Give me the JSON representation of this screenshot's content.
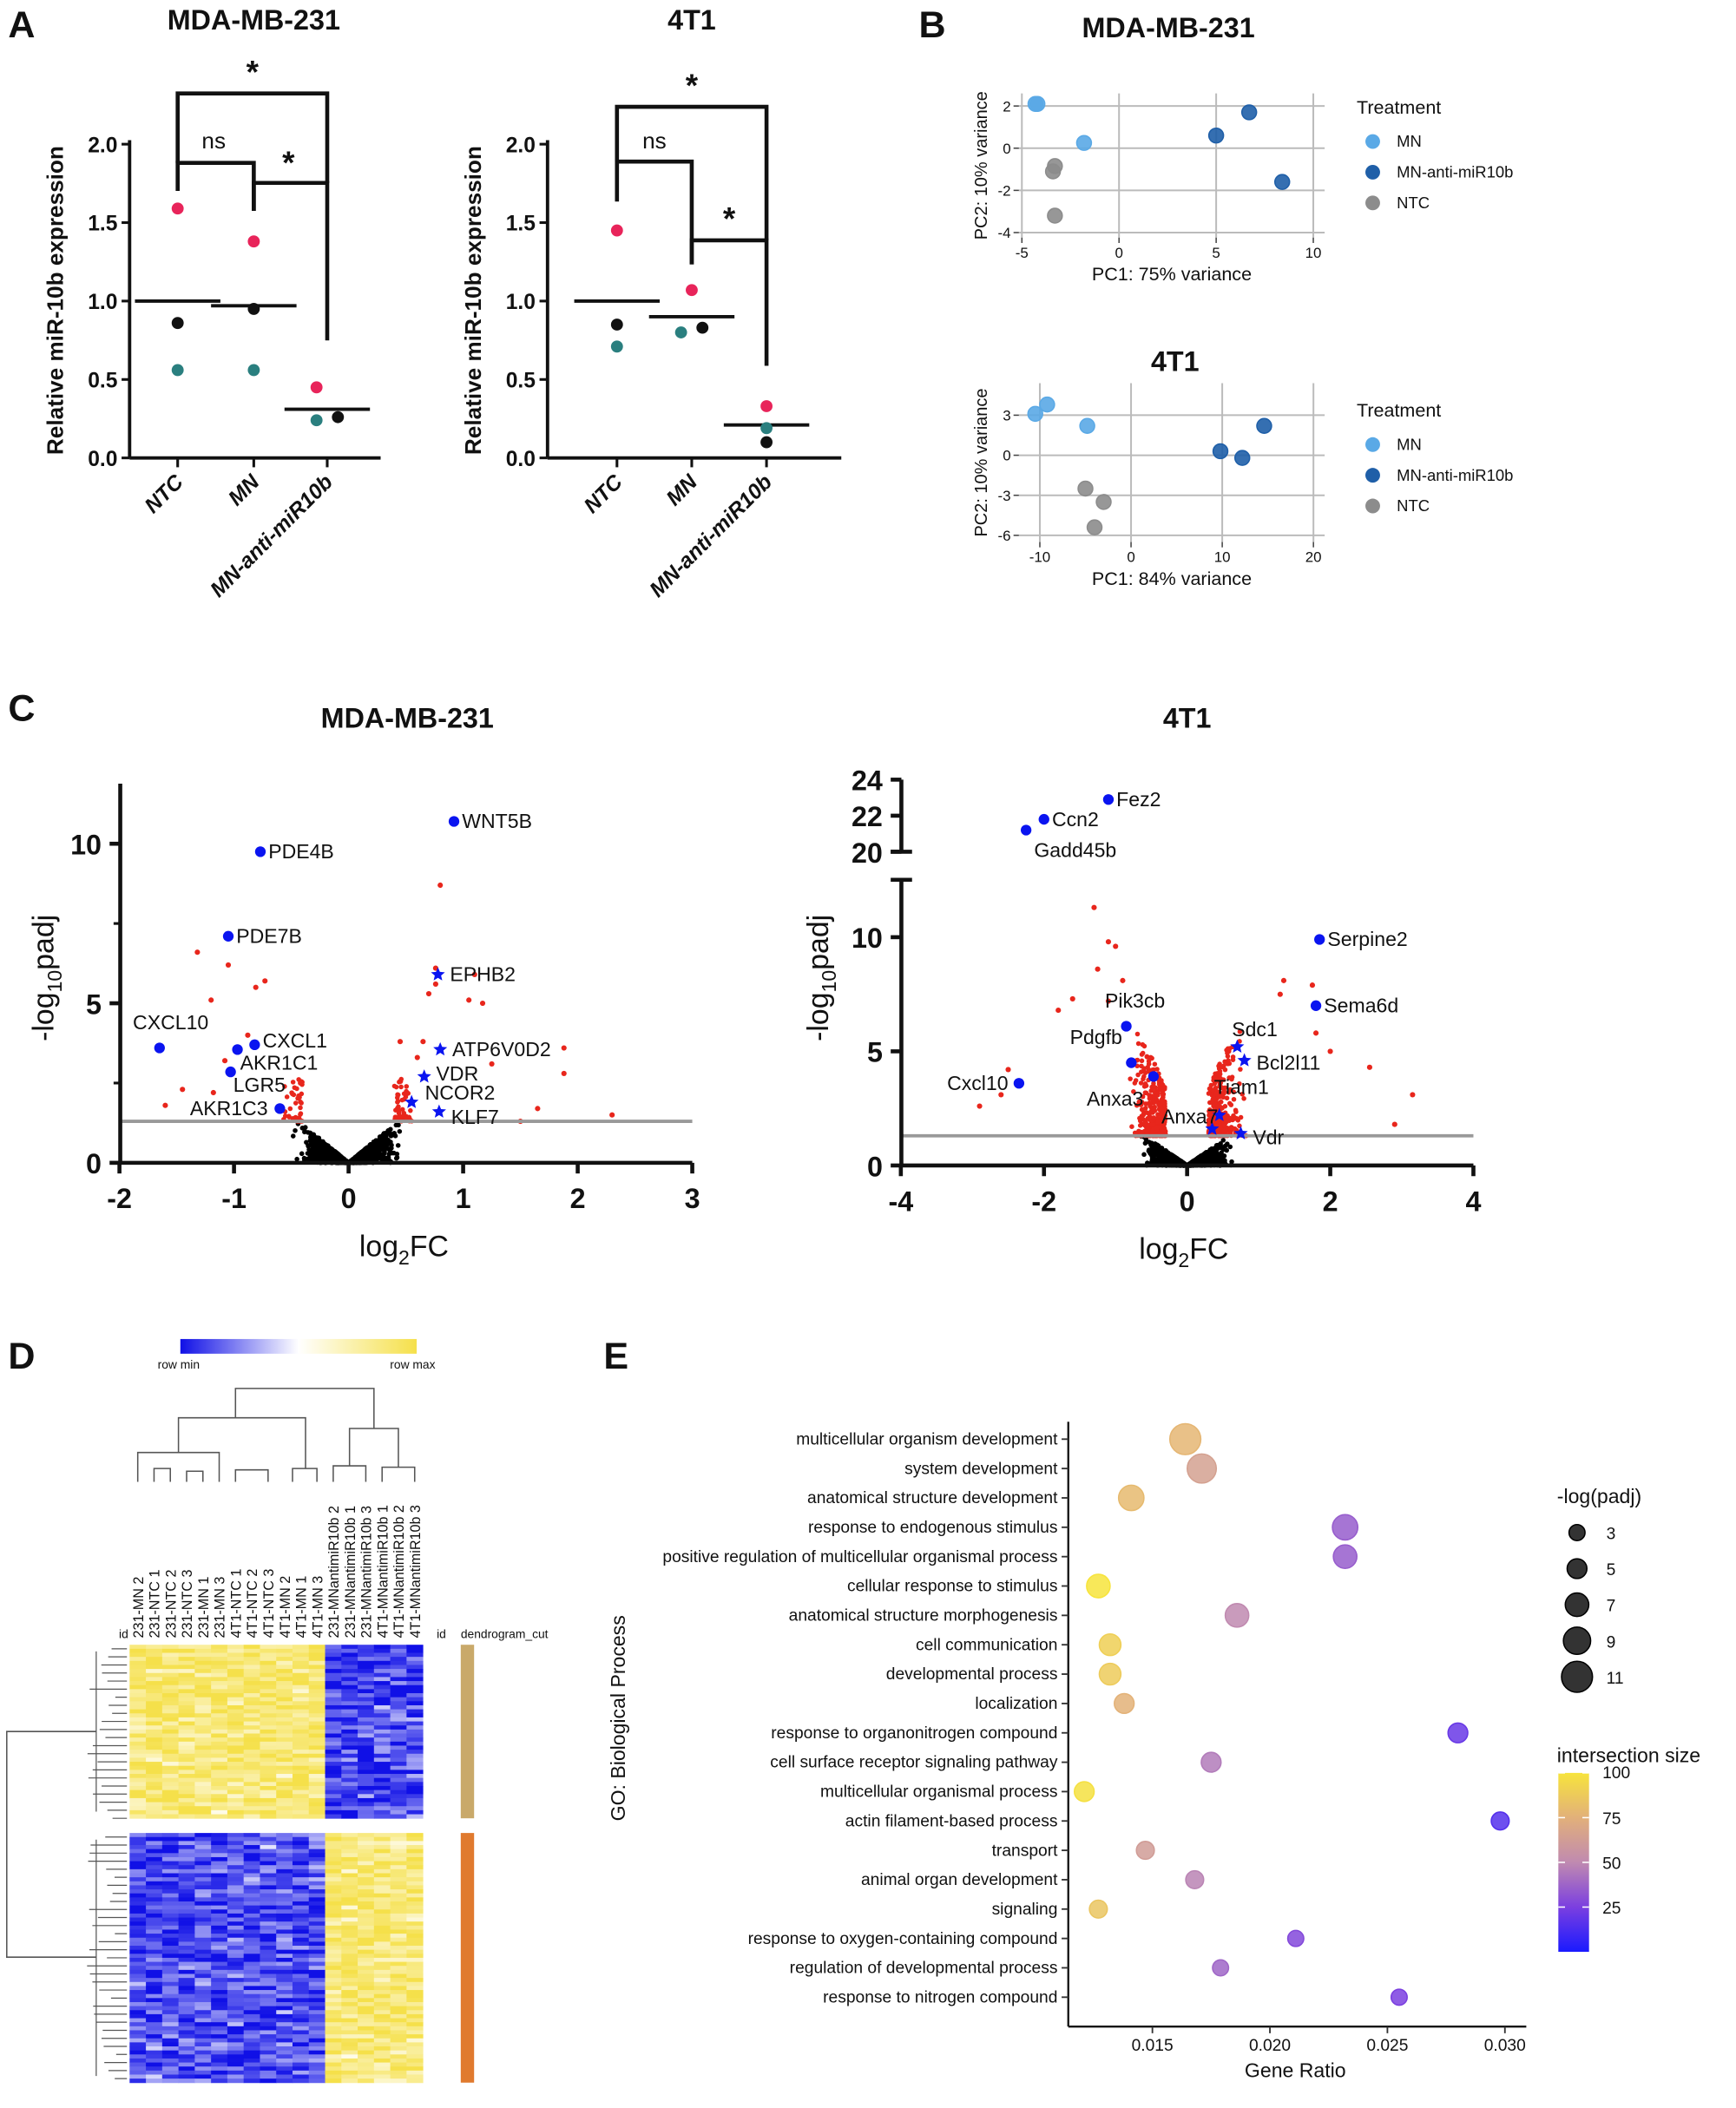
{
  "panel_labels": [
    "A",
    "B",
    "C",
    "D",
    "E"
  ],
  "colors": {
    "replicate_1": "#e8245a",
    "replicate_2": "#111111",
    "replicate_3": "#2a7f7f",
    "MN": "#5aa9e6",
    "MN-anti-miR10b": "#1f5fa8",
    "NTC": "#8c8c8c",
    "significant": "#e8261c",
    "not_significant": "#000000",
    "highlight": "#0a14f0",
    "threshold": "#999999"
  },
  "chart_data": [
    {
      "panel": "A",
      "type": "scatter",
      "title": "MDA-MB-231",
      "ylabel": "Relative miR-10b expression",
      "ylim": [
        0,
        2
      ],
      "yticks": [
        "0.0",
        "0.5",
        "1.0",
        "1.5",
        "2.0"
      ],
      "categories": [
        "NTC",
        "MN",
        "MN-anti-miR10b"
      ],
      "replicates": [
        {
          "color": "#e8245a",
          "values": [
            1.59,
            1.38,
            0.45
          ]
        },
        {
          "color": "#111111",
          "values": [
            0.86,
            0.95,
            0.26
          ]
        },
        {
          "color": "#2a7f7f",
          "values": [
            0.56,
            0.56,
            0.24
          ]
        }
      ],
      "means": [
        1.0,
        0.97,
        0.31
      ],
      "comparisons": [
        {
          "groups": [
            "NTC",
            "MN"
          ],
          "label": "ns"
        },
        {
          "groups": [
            "MN",
            "MN-anti-miR10b"
          ],
          "label": "*"
        },
        {
          "groups": [
            "NTC",
            "MN-anti-miR10b"
          ],
          "label": "*"
        }
      ]
    },
    {
      "panel": "A",
      "type": "scatter",
      "title": "4T1",
      "ylabel": "Relative miR-10b expression",
      "ylim": [
        0,
        2
      ],
      "yticks": [
        "0.0",
        "0.5",
        "1.0",
        "1.5",
        "2.0"
      ],
      "categories": [
        "NTC",
        "MN",
        "MN-anti-miR10b"
      ],
      "replicates": [
        {
          "color": "#e8245a",
          "values": [
            1.45,
            1.07,
            0.33
          ]
        },
        {
          "color": "#111111",
          "values": [
            0.85,
            0.83,
            0.1
          ]
        },
        {
          "color": "#2a7f7f",
          "values": [
            0.71,
            0.8,
            0.19
          ]
        }
      ],
      "means": [
        1.0,
        0.9,
        0.21
      ],
      "comparisons": [
        {
          "groups": [
            "NTC",
            "MN"
          ],
          "label": "ns"
        },
        {
          "groups": [
            "MN",
            "MN-anti-miR10b"
          ],
          "label": "*"
        },
        {
          "groups": [
            "NTC",
            "MN-anti-miR10b"
          ],
          "label": "*"
        }
      ]
    },
    {
      "panel": "B",
      "type": "scatter",
      "title": "MDA-MB-231",
      "xlabel": "PC1: 75% variance",
      "ylabel": "PC2: 10% variance",
      "xticks": [
        "-5",
        "0",
        "5",
        "10"
      ],
      "yticks": [
        "2",
        "0",
        "-2",
        "-4"
      ],
      "grid": true,
      "legend_title": "Treatment",
      "legend_position": "right",
      "series": [
        {
          "name": "MN",
          "color": "#5aa9e6",
          "points": [
            [
              -4.2,
              2.1
            ],
            [
              -4.3,
              2.1
            ],
            [
              -1.8,
              0.25
            ]
          ]
        },
        {
          "name": "MN-anti-miR10b",
          "color": "#1f5fa8",
          "points": [
            [
              5.0,
              0.6
            ],
            [
              6.7,
              1.7
            ],
            [
              8.4,
              -1.6
            ]
          ]
        },
        {
          "name": "NTC",
          "color": "#8c8c8c",
          "points": [
            [
              -3.3,
              -0.85
            ],
            [
              -3.4,
              -1.1
            ],
            [
              -3.3,
              -3.2
            ]
          ]
        }
      ]
    },
    {
      "panel": "B",
      "type": "scatter",
      "title": "4T1",
      "xlabel": "PC1: 84% variance",
      "ylabel": "PC2: 10% variance",
      "xticks": [
        "-10",
        "0",
        "10",
        "20"
      ],
      "yticks": [
        "3",
        "0",
        "-3",
        "-6"
      ],
      "grid": true,
      "legend_title": "Treatment",
      "legend_position": "right",
      "series": [
        {
          "name": "MN",
          "color": "#5aa9e6",
          "points": [
            [
              -10.5,
              3.1
            ],
            [
              -9.2,
              3.8
            ],
            [
              -4.8,
              2.2
            ]
          ]
        },
        {
          "name": "MN-anti-miR10b",
          "color": "#1f5fa8",
          "points": [
            [
              9.8,
              0.3
            ],
            [
              12.2,
              -0.2
            ],
            [
              14.6,
              2.2
            ]
          ]
        },
        {
          "name": "NTC",
          "color": "#8c8c8c",
          "points": [
            [
              -5.0,
              -2.5
            ],
            [
              -3.0,
              -3.5
            ],
            [
              -4.0,
              -5.4
            ]
          ]
        }
      ]
    },
    {
      "panel": "C",
      "type": "scatter",
      "title": "MDA-MB-231",
      "xlabel_base": "log",
      "xlabel_sub": "2",
      "xlabel_rest": "FC",
      "ylabel_base": "-log",
      "ylabel_sub": "10",
      "ylabel_rest": "padj",
      "xlim": [
        -2,
        3
      ],
      "ylim": [
        0,
        12
      ],
      "threshold": 1.3,
      "xticks": [
        "-2",
        "-1",
        "0",
        "1",
        "2",
        "3"
      ],
      "yticks": [
        "0",
        "5",
        "10"
      ],
      "labeled_genes": [
        {
          "gene": "WNT5B",
          "x": 0.92,
          "y": 10.7,
          "marker": "circle"
        },
        {
          "gene": "PDE4B",
          "x": -0.77,
          "y": 9.75,
          "marker": "circle"
        },
        {
          "gene": "PDE7B",
          "x": -1.05,
          "y": 7.1,
          "marker": "circle"
        },
        {
          "gene": "EPHB2",
          "x": 0.78,
          "y": 5.9,
          "marker": "star"
        },
        {
          "gene": "CXCL10",
          "x": -1.65,
          "y": 3.6,
          "marker": "circle"
        },
        {
          "gene": "CXCL1",
          "x": -0.82,
          "y": 3.7,
          "marker": "circle"
        },
        {
          "gene": "AKR1C1",
          "x": -0.97,
          "y": 3.55,
          "marker": "circle"
        },
        {
          "gene": "LGR5",
          "x": -1.03,
          "y": 2.85,
          "marker": "circle"
        },
        {
          "gene": "AKR1C3",
          "x": -0.6,
          "y": 1.7,
          "marker": "circle"
        },
        {
          "gene": "ATP6V0D2",
          "x": 0.8,
          "y": 3.55,
          "marker": "star"
        },
        {
          "gene": "VDR",
          "x": 0.66,
          "y": 2.7,
          "marker": "star"
        },
        {
          "gene": "NCOR2",
          "x": 0.55,
          "y": 1.9,
          "marker": "star"
        },
        {
          "gene": "KLF7",
          "x": 0.79,
          "y": 1.6,
          "marker": "star"
        }
      ],
      "significant_points": [
        [
          0.8,
          8.7
        ],
        [
          -1.32,
          6.6
        ],
        [
          -1.05,
          6.2
        ],
        [
          -0.73,
          5.7
        ],
        [
          -0.81,
          5.5
        ],
        [
          -1.2,
          5.1
        ],
        [
          0.76,
          6.1
        ],
        [
          1.1,
          5.9
        ],
        [
          0.76,
          5.6
        ],
        [
          0.7,
          5.3
        ],
        [
          1.05,
          5.1
        ],
        [
          1.17,
          5.0
        ],
        [
          1.88,
          3.6
        ],
        [
          1.88,
          2.8
        ],
        [
          1.65,
          1.7
        ],
        [
          2.3,
          1.5
        ],
        [
          1.5,
          1.3
        ],
        [
          -1.6,
          1.8
        ],
        [
          -1.45,
          2.3
        ],
        [
          -1.18,
          2.2
        ],
        [
          -0.88,
          4.0
        ],
        [
          -1.08,
          3.2
        ],
        [
          0.45,
          3.8
        ],
        [
          0.65,
          3.8
        ],
        [
          1.25,
          3.1
        ],
        [
          0.6,
          3.3
        ],
        [
          -0.42,
          2.5
        ]
      ],
      "n_background": "many"
    },
    {
      "panel": "C",
      "type": "scatter",
      "title": "4T1",
      "xlabel_base": "log",
      "xlabel_sub": "2",
      "xlabel_rest": "FC",
      "ylabel_base": "-log",
      "ylabel_sub": "10",
      "ylabel_rest": "padj",
      "xlim": [
        -4,
        4
      ],
      "ylim_lower": [
        0,
        12.5
      ],
      "ylim_upper": [
        20,
        24
      ],
      "axis_break": true,
      "threshold": 1.3,
      "xticks": [
        "-4",
        "-2",
        "0",
        "2",
        "4"
      ],
      "yticks_lower": [
        "0",
        "5",
        "10"
      ],
      "yticks_upper": [
        "20",
        "22",
        "24"
      ],
      "labeled_genes": [
        {
          "gene": "Fez2",
          "x": -1.1,
          "y": 22.9,
          "marker": "circle"
        },
        {
          "gene": "Ccn2",
          "x": -2.0,
          "y": 21.8,
          "marker": "circle"
        },
        {
          "gene": "Gadd45b",
          "x": -2.25,
          "y": 21.2,
          "marker": "circle"
        },
        {
          "gene": "Serpine2",
          "x": 1.85,
          "y": 9.9,
          "marker": "circle"
        },
        {
          "gene": "Sema6d",
          "x": 1.8,
          "y": 7.0,
          "marker": "circle"
        },
        {
          "gene": "Pik3cb",
          "x": -0.85,
          "y": 6.1,
          "marker": "circle"
        },
        {
          "gene": "Sdc1",
          "x": 0.7,
          "y": 5.2,
          "marker": "star"
        },
        {
          "gene": "Bcl2l11",
          "x": 0.8,
          "y": 4.6,
          "marker": "star"
        },
        {
          "gene": "Pdgfb",
          "x": -0.78,
          "y": 4.5,
          "marker": "circle"
        },
        {
          "gene": "Anxa3",
          "x": -0.47,
          "y": 3.9,
          "marker": "circle"
        },
        {
          "gene": "Cxcl10",
          "x": -2.35,
          "y": 3.6,
          "marker": "circle"
        },
        {
          "gene": "Tiam1",
          "x": 0.45,
          "y": 2.2,
          "marker": "star"
        },
        {
          "gene": "Anxa7",
          "x": 0.35,
          "y": 1.6,
          "marker": "star"
        },
        {
          "gene": "Vdr",
          "x": 0.75,
          "y": 1.4,
          "marker": "star"
        }
      ],
      "significant_points": [
        [
          -1.3,
          11.3
        ],
        [
          -1.1,
          9.8
        ],
        [
          -1.0,
          9.6
        ],
        [
          -1.25,
          8.6
        ],
        [
          -0.9,
          8.1
        ],
        [
          1.35,
          8.1
        ],
        [
          1.75,
          7.9
        ],
        [
          1.3,
          7.5
        ],
        [
          -1.1,
          7.2
        ],
        [
          -1.6,
          7.3
        ],
        [
          -1.8,
          6.8
        ],
        [
          1.8,
          5.8
        ],
        [
          2.0,
          5.0
        ],
        [
          2.55,
          4.3
        ],
        [
          3.15,
          3.1
        ],
        [
          2.9,
          1.8
        ],
        [
          -2.9,
          2.6
        ],
        [
          -2.5,
          4.2
        ],
        [
          -2.6,
          3.1
        ]
      ],
      "n_background": "many"
    },
    {
      "panel": "D",
      "type": "heatmap",
      "colorbar_min_label": "row min",
      "colorbar_max_label": "row max",
      "row_label": "id",
      "annotation_label": "id",
      "annotation_name": "dendrogram_cut",
      "columns": [
        "231-MN 2",
        "231-NTC 1",
        "231-NTC 2",
        "231-NTC 3",
        "231-MN 1",
        "231-MN 3",
        "4T1-NTC 1",
        "4T1-NTC 2",
        "4T1-NTC 3",
        "4T1-MN 2",
        "4T1-MN 1",
        "4T1-MN 3",
        "231-MNantimiR10b 2",
        "231-MNantimiR10b 1",
        "231-MNantimiR10b 3",
        "4T1-MNantimiR10b 1",
        "4T1-MNantimiR10b 2",
        "4T1-MNantimiR10b 3"
      ],
      "clusters": [
        {
          "color": "#c9a96a",
          "pattern": "high in MN/NTC, low in MN-anti-miR10b"
        },
        {
          "color": "#e07a2e",
          "pattern": "low in MN/NTC, high in MN-anti-miR10b"
        }
      ],
      "colors": {
        "min": "#1010e6",
        "mid": "#ffffff",
        "max": "#f5e04a"
      }
    },
    {
      "panel": "E",
      "type": "scatter",
      "xlabel": "Gene Ratio",
      "ylabel": "GO: Biological Process",
      "xticks": [
        "0.015",
        "0.020",
        "0.025",
        "0.030"
      ],
      "size_legend_title": "-log(padj)",
      "size_legend_values": [
        "3",
        "5",
        "7",
        "9",
        "11"
      ],
      "color_legend_title": "intersection size",
      "color_legend_ticks": [
        "100",
        "75",
        "50",
        "25"
      ],
      "terms": [
        {
          "term": "multicellular organism development",
          "gene_ratio": 0.0164,
          "intersection": 78,
          "neglog_padj": 11
        },
        {
          "term": "system development",
          "gene_ratio": 0.0171,
          "intersection": 65,
          "neglog_padj": 10
        },
        {
          "term": "anatomical structure development",
          "gene_ratio": 0.0141,
          "intersection": 80,
          "neglog_padj": 8
        },
        {
          "term": "response to endogenous stimulus",
          "gene_ratio": 0.0232,
          "intersection": 35,
          "neglog_padj": 8
        },
        {
          "term": "positive regulation of multicellular organismal process",
          "gene_ratio": 0.0232,
          "intersection": 35,
          "neglog_padj": 7
        },
        {
          "term": "cellular response to stimulus",
          "gene_ratio": 0.0127,
          "intersection": 100,
          "neglog_padj": 7
        },
        {
          "term": "anatomical structure morphogenesis",
          "gene_ratio": 0.0186,
          "intersection": 50,
          "neglog_padj": 7
        },
        {
          "term": "cell communication",
          "gene_ratio": 0.0132,
          "intersection": 90,
          "neglog_padj": 6
        },
        {
          "term": "developmental process",
          "gene_ratio": 0.0132,
          "intersection": 88,
          "neglog_padj": 6
        },
        {
          "term": "localization",
          "gene_ratio": 0.0138,
          "intersection": 76,
          "neglog_padj": 5
        },
        {
          "term": "response to organonitrogen compound",
          "gene_ratio": 0.028,
          "intersection": 20,
          "neglog_padj": 5
        },
        {
          "term": "cell surface receptor signaling pathway",
          "gene_ratio": 0.0175,
          "intersection": 45,
          "neglog_padj": 5
        },
        {
          "term": "multicellular organismal process",
          "gene_ratio": 0.0121,
          "intersection": 98,
          "neglog_padj": 5
        },
        {
          "term": "actin filament-based process",
          "gene_ratio": 0.0298,
          "intersection": 15,
          "neglog_padj": 4
        },
        {
          "term": "transport",
          "gene_ratio": 0.0147,
          "intersection": 62,
          "neglog_padj": 4
        },
        {
          "term": "animal organ development",
          "gene_ratio": 0.0168,
          "intersection": 48,
          "neglog_padj": 4
        },
        {
          "term": "signaling",
          "gene_ratio": 0.0127,
          "intersection": 85,
          "neglog_padj": 4
        },
        {
          "term": "response to oxygen-containing compound",
          "gene_ratio": 0.0211,
          "intersection": 28,
          "neglog_padj": 3
        },
        {
          "term": "regulation of developmental process",
          "gene_ratio": 0.0179,
          "intersection": 38,
          "neglog_padj": 3
        },
        {
          "term": "response to nitrogen compound",
          "gene_ratio": 0.0255,
          "intersection": 25,
          "neglog_padj": 3
        }
      ]
    }
  ]
}
